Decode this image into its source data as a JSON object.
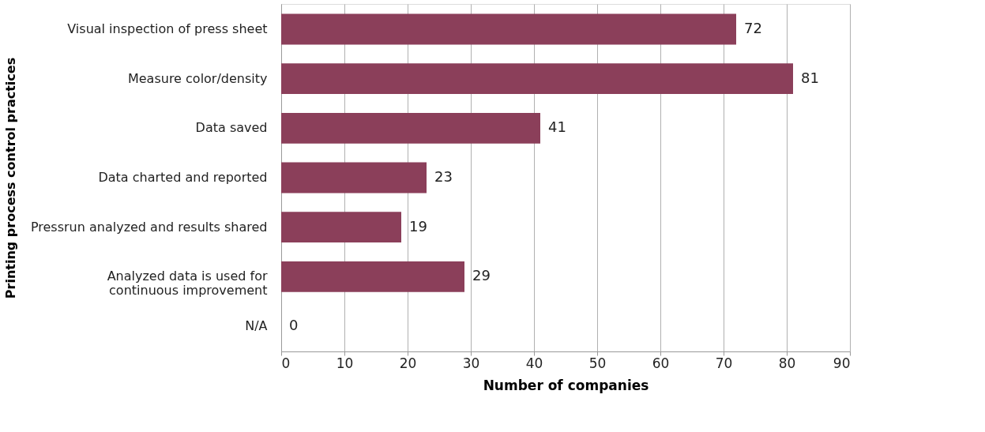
{
  "chart_data": {
    "type": "bar",
    "orientation": "horizontal",
    "categories": [
      "Visual inspection of press sheet",
      "Measure color/density",
      "Data saved",
      "Data charted and reported",
      "Pressrun analyzed and results shared",
      "Analyzed data is used for\ncontinuous improvement",
      "N/A"
    ],
    "values": [
      72,
      81,
      41,
      23,
      19,
      29,
      0
    ],
    "color": "#8b3f5a",
    "xlim": [
      0,
      90
    ],
    "xticks": [
      0,
      10,
      20,
      30,
      40,
      50,
      60,
      70,
      80,
      90
    ],
    "xlabel": "Number of companies",
    "ylabel": "Printing process control practices",
    "grid": "x",
    "data_labels": true
  }
}
